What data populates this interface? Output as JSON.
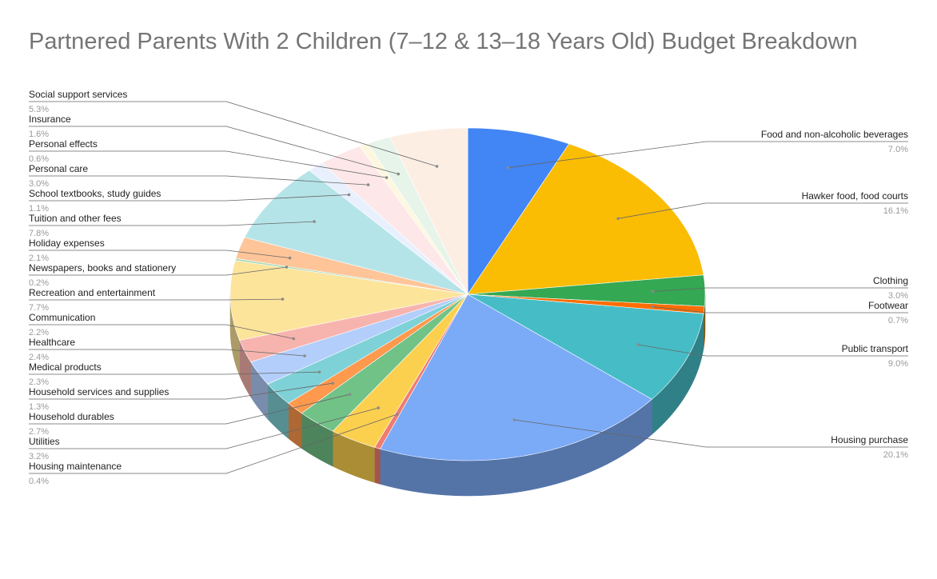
{
  "chart_data": {
    "type": "pie",
    "style": "3d",
    "title": "Partnered Parents With 2 Children (7–12 & 13–18 Years Old) Budget Breakdown",
    "slices": [
      {
        "label": "Food and non-alcoholic beverages",
        "value": 7.0,
        "value_label": "7.0%",
        "color": "#4285F4",
        "side": "right"
      },
      {
        "label": "Hawker food, food courts",
        "value": 16.1,
        "value_label": "16.1%",
        "color": "#FBBC04",
        "side": "right"
      },
      {
        "label": "Clothing",
        "value": 3.0,
        "value_label": "3.0%",
        "color": "#34A853",
        "side": "right"
      },
      {
        "label": "Footwear",
        "value": 0.7,
        "value_label": "0.7%",
        "color": "#FF6D01",
        "side": "right"
      },
      {
        "label": "Public transport",
        "value": 9.0,
        "value_label": "9.0%",
        "color": "#46BDC6",
        "side": "right"
      },
      {
        "label": "Housing purchase",
        "value": 20.1,
        "value_label": "20.1%",
        "color": "#7BAAF7",
        "side": "right"
      },
      {
        "label": "Housing maintenance",
        "value": 0.4,
        "value_label": "0.4%",
        "color": "#F07B72",
        "side": "left"
      },
      {
        "label": "Utilities",
        "value": 3.2,
        "value_label": "3.2%",
        "color": "#FCD04F",
        "side": "left"
      },
      {
        "label": "Household durables",
        "value": 2.7,
        "value_label": "2.7%",
        "color": "#71C287",
        "side": "left"
      },
      {
        "label": "Household services and supplies",
        "value": 1.3,
        "value_label": "1.3%",
        "color": "#FF994D",
        "side": "left"
      },
      {
        "label": "Medical products",
        "value": 2.3,
        "value_label": "2.3%",
        "color": "#7ED1D7",
        "side": "left"
      },
      {
        "label": "Healthcare",
        "value": 2.4,
        "value_label": "2.4%",
        "color": "#B3CEFB",
        "side": "left"
      },
      {
        "label": "Communication",
        "value": 2.2,
        "value_label": "2.2%",
        "color": "#F7B4AE",
        "side": "left"
      },
      {
        "label": "Recreation and entertainment",
        "value": 7.7,
        "value_label": "7.7%",
        "color": "#FDE49B",
        "side": "left"
      },
      {
        "label": "Newspapers, books and stationery",
        "value": 0.2,
        "value_label": "0.2%",
        "color": "#AEDCBA",
        "side": "left"
      },
      {
        "label": "Holiday expenses",
        "value": 2.1,
        "value_label": "2.1%",
        "color": "#FFC599",
        "side": "left"
      },
      {
        "label": "Tuition and other fees",
        "value": 7.8,
        "value_label": "7.8%",
        "color": "#B5E4E8",
        "side": "left"
      },
      {
        "label": "School textbooks, study guides",
        "value": 1.1,
        "value_label": "1.1%",
        "color": "#E8F0FE",
        "side": "left"
      },
      {
        "label": "Personal care",
        "value": 3.0,
        "value_label": "3.0%",
        "color": "#FDE7E9",
        "side": "left"
      },
      {
        "label": "Personal effects",
        "value": 0.6,
        "value_label": "0.6%",
        "color": "#FEF7E0",
        "side": "left"
      },
      {
        "label": "Insurance",
        "value": 1.6,
        "value_label": "1.6%",
        "color": "#E6F4EA",
        "side": "left"
      },
      {
        "label": "Social support services",
        "value": 5.3,
        "value_label": "5.3%",
        "color": "#FDEEE4",
        "side": "left"
      }
    ],
    "legend": "none",
    "labels": "callouts with leader lines"
  }
}
